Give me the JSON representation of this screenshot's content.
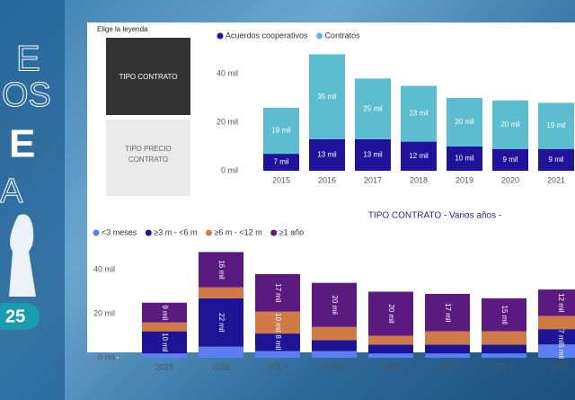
{
  "background_text": [
    "E",
    "OS",
    "E",
    "A",
    "25"
  ],
  "legend_selector": {
    "title": "Elige la leyenda",
    "options": [
      "TIPO CONTRATO",
      "TIPO PRECIO CONTRATO"
    ]
  },
  "chart_data": [
    {
      "type": "bar",
      "stacked": true,
      "categories": [
        "2015",
        "2016",
        "2017",
        "2018",
        "2019",
        "2020",
        "2021"
      ],
      "series": [
        {
          "name": "Acuerdos cooperativos",
          "color": "#21129b",
          "values": [
            7,
            13,
            13,
            12,
            10,
            9,
            9
          ],
          "value_labels": [
            "7 mil",
            "13 mil",
            "13 mil",
            "12 mil",
            "10 mil",
            "9 mil",
            "9 mil"
          ]
        },
        {
          "name": "Contratos",
          "color": "#5cbdd0",
          "values": [
            19,
            35,
            25,
            23,
            20,
            20,
            19
          ],
          "value_labels": [
            "19 mil",
            "35 mil",
            "25 mil",
            "23 mil",
            "20 mil",
            "20 mil",
            "19 mil"
          ]
        }
      ],
      "ylim": [
        0,
        50
      ],
      "yticks": [
        {
          "value": 0,
          "label": "0 mil"
        },
        {
          "value": 20,
          "label": "20 mil"
        },
        {
          "value": 40,
          "label": "40 mil"
        }
      ]
    },
    {
      "type": "bar",
      "stacked": true,
      "title": "TIPO CONTRATO - Varios años -",
      "categories": [
        "2015",
        "2016",
        "2017",
        "2018",
        "2019",
        "2020",
        "2021",
        "2022"
      ],
      "series": [
        {
          "name": "<3 meses",
          "color": "#5b7ef0",
          "values": [
            2,
            5,
            3,
            3,
            2,
            2,
            2,
            6
          ],
          "value_labels": [
            null,
            null,
            null,
            null,
            null,
            null,
            null,
            "6 mil"
          ]
        },
        {
          "name": "≥3 m - <6 m",
          "color": "#1d1596",
          "values": [
            10,
            22,
            8,
            5,
            4,
            4,
            4,
            7
          ],
          "value_labels": [
            "10 mil",
            "22 mil",
            "8 mil",
            null,
            null,
            null,
            null,
            "7 mil"
          ]
        },
        {
          "name": "≥6 m - <12 m",
          "color": "#d07a46",
          "values": [
            4,
            5,
            10,
            6,
            4,
            6,
            6,
            6
          ],
          "value_labels": [
            null,
            null,
            "10 mil",
            null,
            null,
            null,
            null,
            null
          ]
        },
        {
          "name": "≥1 año",
          "color": "#5b1a80",
          "values": [
            9,
            16,
            17,
            20,
            20,
            17,
            15,
            12
          ],
          "value_labels": [
            "9 mil",
            "16 mil",
            "17 mil",
            "20 mil",
            "20 mil",
            "17 mil",
            "15 mil",
            "12 mil"
          ]
        }
      ],
      "ylim": [
        0,
        50
      ],
      "yticks": [
        {
          "value": 0,
          "label": "0 mil"
        },
        {
          "value": 20,
          "label": "20 mil"
        },
        {
          "value": 40,
          "label": "40 mil"
        }
      ]
    }
  ]
}
